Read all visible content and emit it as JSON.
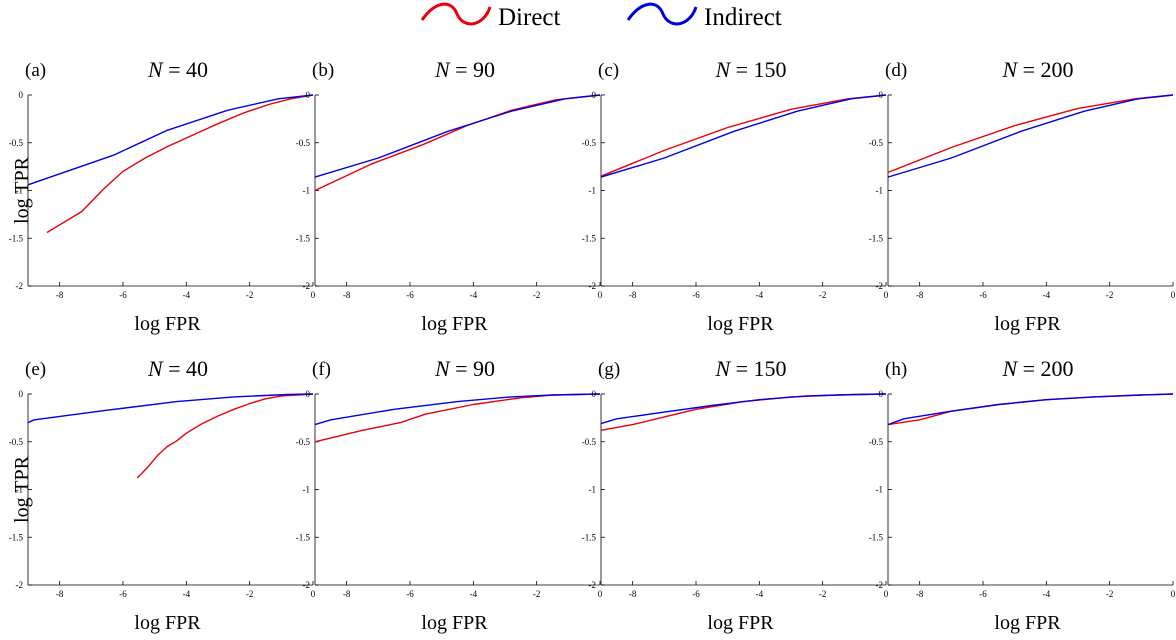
{
  "legend": {
    "entries": [
      {
        "label": "Direct",
        "color": "#e8000b"
      },
      {
        "label": "Indirect",
        "color": "#0000e0"
      }
    ]
  },
  "chart_data": [
    {
      "type": "line",
      "panel_label": "(a)",
      "title": "N = 40",
      "title_math": {
        "var": "N",
        "rest": " = 40"
      },
      "xlabel": "log FPR",
      "ylabel": "log TPR",
      "xlim": [
        -9,
        0
      ],
      "ylim": [
        -2,
        0
      ],
      "xticks": [
        -8,
        -6,
        -4,
        -2,
        0
      ],
      "yticks": [
        0,
        -0.5,
        -1,
        -1.5,
        -2
      ],
      "series": [
        {
          "name": "Direct",
          "color": "#e8000b",
          "x": [
            -8.4,
            -7.3,
            -6.6,
            -6.0,
            -5.3,
            -4.6,
            -3.8,
            -3.0,
            -2.2,
            -1.4,
            -0.7,
            0
          ],
          "y": [
            -1.44,
            -1.22,
            -0.98,
            -0.8,
            -0.66,
            -0.54,
            -0.42,
            -0.3,
            -0.19,
            -0.1,
            -0.04,
            0
          ]
        },
        {
          "name": "Indirect",
          "color": "#0000e0",
          "x": [
            -9.0,
            -6.3,
            -4.6,
            -2.7,
            -1.1,
            0
          ],
          "y": [
            -0.94,
            -0.63,
            -0.37,
            -0.16,
            -0.04,
            0
          ]
        }
      ]
    },
    {
      "type": "line",
      "panel_label": "(b)",
      "title": "N = 90",
      "title_math": {
        "var": "N",
        "rest": " = 90"
      },
      "xlabel": "log FPR",
      "ylabel": "",
      "xlim": [
        -9,
        0
      ],
      "ylim": [
        -2,
        0
      ],
      "xticks": [
        -8,
        -6,
        -4,
        -2,
        0
      ],
      "yticks": [
        0,
        -0.5,
        -1,
        -1.5,
        -2
      ],
      "series": [
        {
          "name": "Direct",
          "color": "#e8000b",
          "x": [
            -9.0,
            -7.2,
            -5.6,
            -4.2,
            -2.8,
            -1.4,
            0
          ],
          "y": [
            -1.0,
            -0.72,
            -0.52,
            -0.32,
            -0.16,
            -0.05,
            0
          ]
        },
        {
          "name": "Indirect",
          "color": "#0000e0",
          "x": [
            -9.0,
            -7.0,
            -4.8,
            -2.8,
            -1.1,
            0
          ],
          "y": [
            -0.86,
            -0.66,
            -0.38,
            -0.17,
            -0.04,
            0
          ]
        }
      ]
    },
    {
      "type": "line",
      "panel_label": "(c)",
      "title": "N = 150",
      "title_math": {
        "var": "N",
        "rest": " = 150"
      },
      "xlabel": "log FPR",
      "ylabel": "",
      "xlim": [
        -9,
        0
      ],
      "ylim": [
        -2,
        0
      ],
      "xticks": [
        -8,
        -6,
        -4,
        -2,
        0
      ],
      "yticks": [
        0,
        -0.5,
        -1,
        -1.5,
        -2
      ],
      "series": [
        {
          "name": "Direct",
          "color": "#e8000b",
          "x": [
            -9.0,
            -7.0,
            -5.0,
            -3.0,
            -1.2,
            0
          ],
          "y": [
            -0.85,
            -0.58,
            -0.34,
            -0.15,
            -0.04,
            0
          ]
        },
        {
          "name": "Indirect",
          "color": "#0000e0",
          "x": [
            -9.0,
            -7.0,
            -4.8,
            -2.8,
            -1.1,
            0
          ],
          "y": [
            -0.86,
            -0.66,
            -0.38,
            -0.17,
            -0.04,
            0
          ]
        }
      ]
    },
    {
      "type": "line",
      "panel_label": "(d)",
      "title": "N = 200",
      "title_math": {
        "var": "N",
        "rest": " = 200"
      },
      "xlabel": "log FPR",
      "ylabel": "",
      "xlim": [
        -9,
        0
      ],
      "ylim": [
        -2,
        0
      ],
      "xticks": [
        -8,
        -6,
        -4,
        -2,
        0
      ],
      "yticks": [
        0,
        -0.5,
        -1,
        -1.5,
        -2
      ],
      "series": [
        {
          "name": "Direct",
          "color": "#e8000b",
          "x": [
            -9.0,
            -7.0,
            -5.0,
            -3.0,
            -1.2,
            0
          ],
          "y": [
            -0.81,
            -0.55,
            -0.32,
            -0.14,
            -0.04,
            0
          ]
        },
        {
          "name": "Indirect",
          "color": "#0000e0",
          "x": [
            -9.0,
            -7.0,
            -4.8,
            -2.8,
            -1.1,
            0
          ],
          "y": [
            -0.86,
            -0.66,
            -0.38,
            -0.17,
            -0.04,
            0
          ]
        }
      ]
    },
    {
      "type": "line",
      "panel_label": "(e)",
      "title": "N = 40",
      "title_math": {
        "var": "N",
        "rest": " = 40"
      },
      "xlabel": "log FPR",
      "ylabel": "log TPR",
      "xlim": [
        -9,
        0
      ],
      "ylim": [
        -2,
        0
      ],
      "xticks": [
        -8,
        -6,
        -4,
        -2,
        0
      ],
      "yticks": [
        0,
        -0.5,
        -1,
        -1.5,
        -2
      ],
      "series": [
        {
          "name": "Direct",
          "color": "#e8000b",
          "x": [
            -5.55,
            -5.2,
            -4.9,
            -4.6,
            -4.3,
            -4.0,
            -3.5,
            -3.0,
            -2.5,
            -2.0,
            -1.5,
            -1.0,
            -0.5,
            0
          ],
          "y": [
            -0.88,
            -0.76,
            -0.64,
            -0.55,
            -0.49,
            -0.41,
            -0.31,
            -0.23,
            -0.16,
            -0.1,
            -0.05,
            -0.02,
            -0.01,
            0
          ]
        },
        {
          "name": "Indirect",
          "color": "#0000e0",
          "x": [
            -9.0,
            -8.8,
            -6.5,
            -4.3,
            -2.5,
            -0.8,
            0
          ],
          "y": [
            -0.3,
            -0.27,
            -0.17,
            -0.08,
            -0.03,
            -0.005,
            0
          ]
        }
      ]
    },
    {
      "type": "line",
      "panel_label": "(f)",
      "title": "N = 90",
      "title_math": {
        "var": "N",
        "rest": " = 90"
      },
      "xlabel": "log FPR",
      "ylabel": "",
      "xlim": [
        -9,
        0
      ],
      "ylim": [
        -2,
        0
      ],
      "xticks": [
        -8,
        -6,
        -4,
        -2,
        0
      ],
      "yticks": [
        0,
        -0.5,
        -1,
        -1.5,
        -2
      ],
      "series": [
        {
          "name": "Direct",
          "color": "#e8000b",
          "x": [
            -9.0,
            -7.5,
            -6.3,
            -5.5,
            -4.0,
            -2.5,
            -1.5,
            0
          ],
          "y": [
            -0.5,
            -0.38,
            -0.3,
            -0.21,
            -0.11,
            -0.04,
            -0.01,
            0
          ]
        },
        {
          "name": "Indirect",
          "color": "#0000e0",
          "x": [
            -9.0,
            -8.5,
            -6.5,
            -4.5,
            -2.8,
            -1.5,
            0
          ],
          "y": [
            -0.32,
            -0.27,
            -0.16,
            -0.08,
            -0.03,
            -0.01,
            0
          ]
        }
      ]
    },
    {
      "type": "line",
      "panel_label": "(g)",
      "title": "N = 150",
      "title_math": {
        "var": "N",
        "rest": " = 150"
      },
      "xlabel": "log FPR",
      "ylabel": "",
      "xlim": [
        -9,
        0
      ],
      "ylim": [
        -2,
        0
      ],
      "xticks": [
        -8,
        -6,
        -4,
        -2,
        0
      ],
      "yticks": [
        0,
        -0.5,
        -1,
        -1.5,
        -2
      ],
      "series": [
        {
          "name": "Direct",
          "color": "#e8000b",
          "x": [
            -9.0,
            -8.0,
            -7.0,
            -6.0,
            -4.5,
            -3.0,
            -1.5,
            0
          ],
          "y": [
            -0.38,
            -0.32,
            -0.24,
            -0.16,
            -0.08,
            -0.03,
            -0.01,
            0
          ]
        },
        {
          "name": "Indirect",
          "color": "#0000e0",
          "x": [
            -9.0,
            -8.5,
            -7.0,
            -5.5,
            -4.0,
            -2.5,
            -1.0,
            0
          ],
          "y": [
            -0.31,
            -0.26,
            -0.19,
            -0.12,
            -0.06,
            -0.02,
            -0.005,
            0
          ]
        }
      ]
    },
    {
      "type": "line",
      "panel_label": "(h)",
      "title": "N = 200",
      "title_math": {
        "var": "N",
        "rest": " = 200"
      },
      "xlabel": "log FPR",
      "ylabel": "",
      "xlim": [
        -9,
        0
      ],
      "ylim": [
        -2,
        0
      ],
      "xticks": [
        -8,
        -6,
        -4,
        -2,
        0
      ],
      "yticks": [
        0,
        -0.5,
        -1,
        -1.5,
        -2
      ],
      "series": [
        {
          "name": "Direct",
          "color": "#e8000b",
          "x": [
            -9.0,
            -8.0,
            -7.0,
            -5.5,
            -4.0,
            -2.5,
            -1.0,
            0
          ],
          "y": [
            -0.32,
            -0.27,
            -0.18,
            -0.11,
            -0.06,
            -0.03,
            -0.01,
            0
          ]
        },
        {
          "name": "Indirect",
          "color": "#0000e0",
          "x": [
            -9.0,
            -8.5,
            -7.0,
            -5.5,
            -4.0,
            -2.5,
            -1.0,
            0
          ],
          "y": [
            -0.32,
            -0.26,
            -0.18,
            -0.11,
            -0.06,
            -0.03,
            -0.01,
            0
          ]
        }
      ]
    }
  ]
}
